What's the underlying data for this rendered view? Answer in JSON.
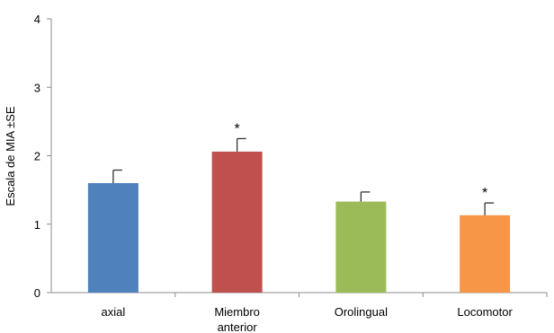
{
  "chart_data": {
    "type": "bar",
    "title": "",
    "xlabel": "",
    "ylabel": "Escala de MIA ±SE",
    "ylim": [
      0,
      4
    ],
    "yticks": [
      "0",
      "1",
      "2",
      "3",
      "4"
    ],
    "grid": false,
    "legend": "none",
    "categories": [
      [
        "axial"
      ],
      [
        "Miembro",
        "anterior"
      ],
      [
        "Orolingual"
      ],
      [
        "Locomotor"
      ]
    ],
    "values": [
      1.6,
      2.06,
      1.33,
      1.13
    ],
    "errors": [
      0.19,
      0.19,
      0.14,
      0.18
    ],
    "annotations": [
      "",
      "*",
      "",
      "*"
    ],
    "colors": [
      "#4f81bd",
      "#c0504d",
      "#9bbb59",
      "#f79646"
    ]
  }
}
